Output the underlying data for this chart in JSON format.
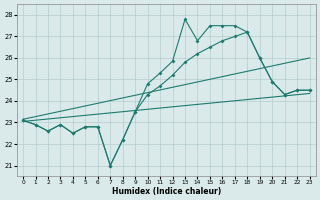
{
  "x": [
    0,
    1,
    2,
    3,
    4,
    5,
    6,
    7,
    8,
    9,
    10,
    11,
    12,
    13,
    14,
    15,
    16,
    17,
    18,
    19,
    20,
    21,
    22,
    23
  ],
  "line_spiky": [
    23.1,
    22.9,
    22.6,
    22.9,
    22.5,
    22.8,
    22.8,
    21.0,
    22.2,
    23.5,
    24.8,
    25.3,
    25.85,
    27.8,
    26.8,
    27.5,
    27.5,
    27.5,
    27.2,
    26.0,
    24.9,
    24.3,
    24.5,
    24.5
  ],
  "line_smooth": [
    23.1,
    22.9,
    22.6,
    22.9,
    22.5,
    22.8,
    22.8,
    21.0,
    22.2,
    23.5,
    24.3,
    24.7,
    25.2,
    25.8,
    26.2,
    26.5,
    26.8,
    27.0,
    27.2,
    26.0,
    24.9,
    24.3,
    24.5,
    24.5
  ],
  "trend1_x": [
    0,
    23
  ],
  "trend1_y": [
    23.15,
    26.0
  ],
  "trend2_x": [
    0,
    23
  ],
  "trend2_y": [
    23.05,
    24.35
  ],
  "bg_color": "#daeaea",
  "line_color": "#1e7a6e",
  "grid_color": "#b5cccc",
  "xlabel": "Humidex (Indice chaleur)",
  "yticks": [
    21,
    22,
    23,
    24,
    25,
    26,
    27,
    28
  ],
  "xticks": [
    0,
    1,
    2,
    3,
    4,
    5,
    6,
    7,
    8,
    9,
    10,
    11,
    12,
    13,
    14,
    15,
    16,
    17,
    18,
    19,
    20,
    21,
    22,
    23
  ],
  "ylim": [
    20.5,
    28.5
  ],
  "xlim": [
    -0.5,
    23.5
  ]
}
